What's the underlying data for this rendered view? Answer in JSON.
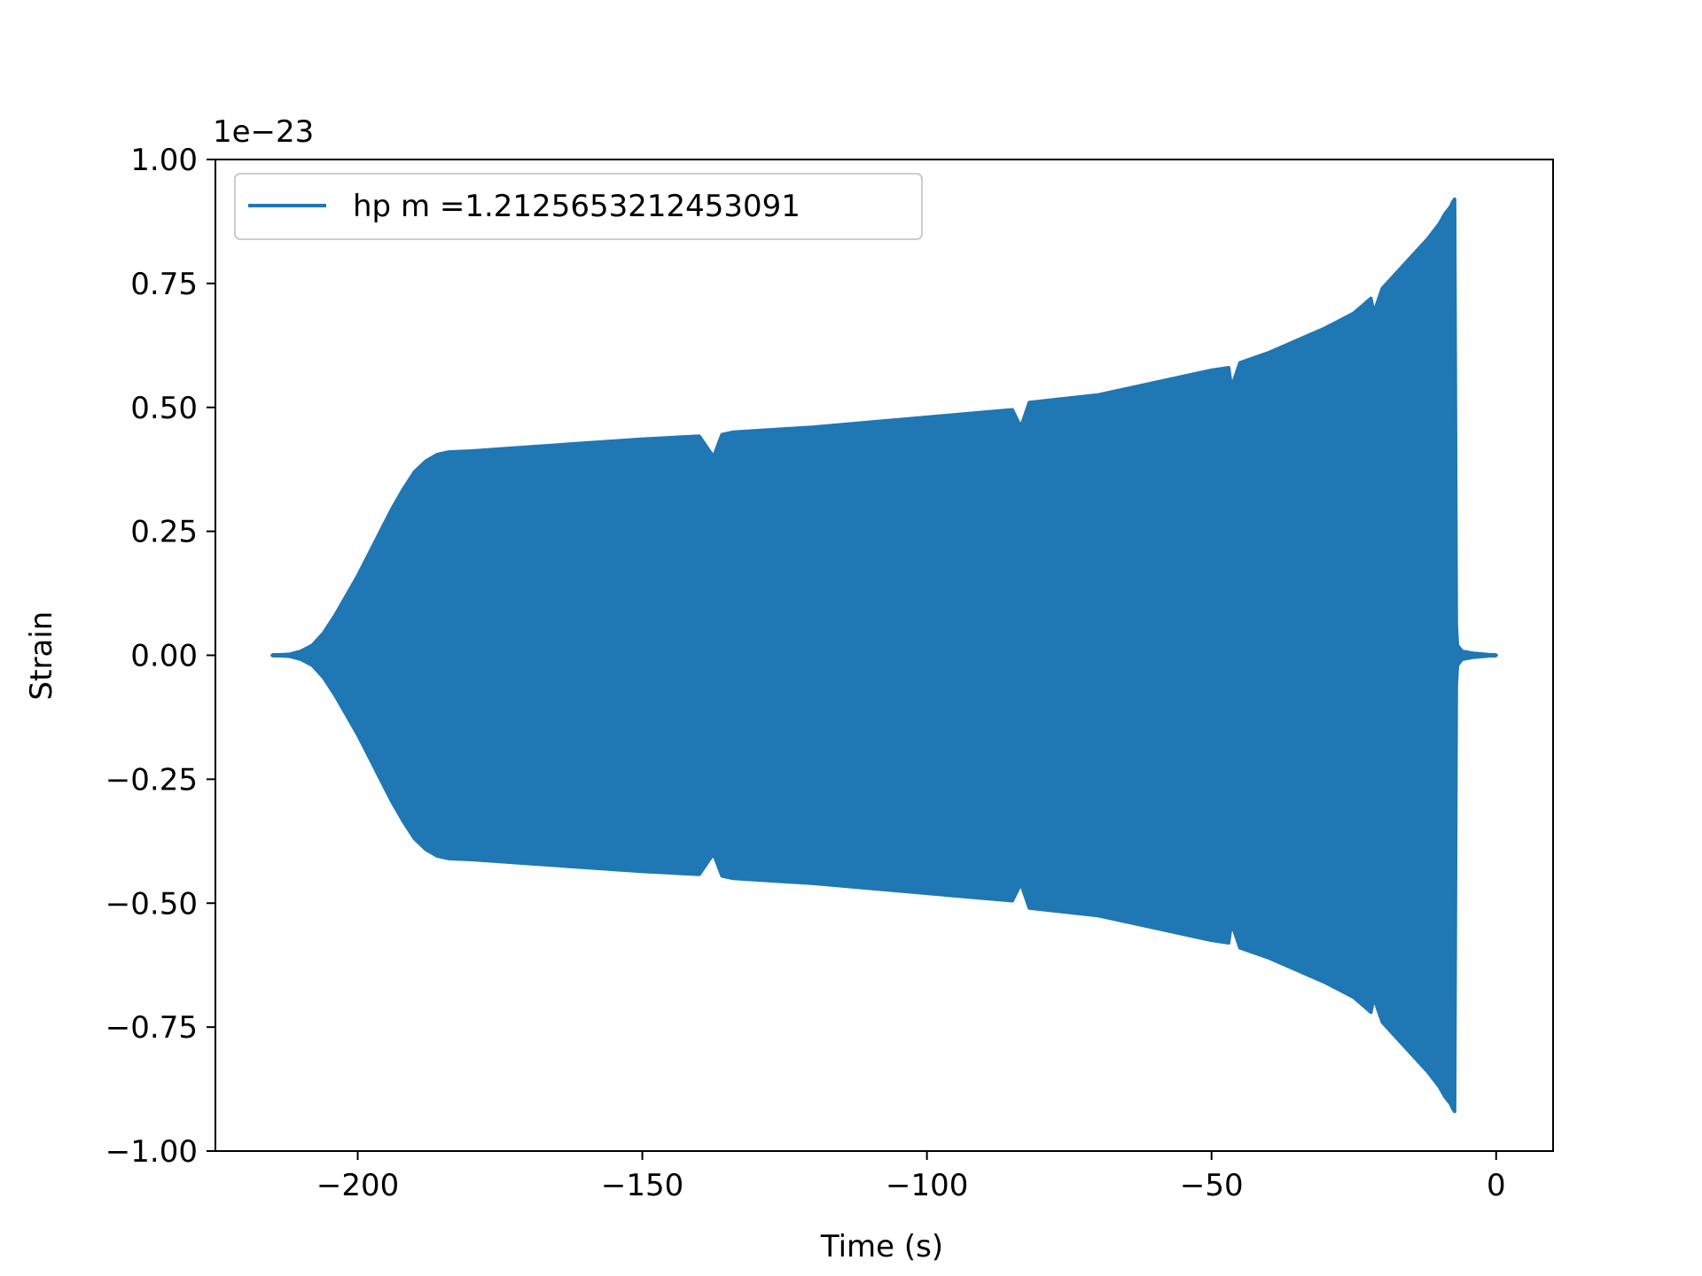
{
  "chart_data": {
    "type": "line",
    "title": "",
    "xlabel": "Time (s)",
    "ylabel": "Strain",
    "y_offset_label": "1e−23",
    "y_scale_note": "values in units of 1e-23",
    "xlim": [
      -225,
      10
    ],
    "ylim": [
      -1.0,
      1.0
    ],
    "x_ticks": [
      -200,
      -150,
      -100,
      -50,
      0
    ],
    "x_tick_labels": [
      "−200",
      "−150",
      "−100",
      "−50",
      "0"
    ],
    "y_ticks": [
      -1.0,
      -0.75,
      -0.5,
      -0.25,
      0.0,
      0.25,
      0.5,
      0.75,
      1.0
    ],
    "y_tick_labels": [
      "−1.00",
      "−0.75",
      "−0.50",
      "−0.25",
      "0.00",
      "0.25",
      "0.50",
      "0.75",
      "1.00"
    ],
    "grid": false,
    "legend_position": "upper-left",
    "series": [
      {
        "name": "hp m =1.2125653212453091",
        "color": "#1f77b4",
        "style": "dense-oscillation-envelope",
        "x": [
          -215,
          -212,
          -210,
          -208,
          -206,
          -204,
          -202,
          -200,
          -198,
          -196,
          -194,
          -192,
          -190,
          -188,
          -186,
          -184,
          -180,
          -170,
          -160,
          -150,
          -140,
          -137.5,
          -136,
          -134,
          -120,
          -110,
          -100,
          -90,
          -85,
          -83.5,
          -82,
          -70,
          -60,
          -50,
          -47,
          -46.5,
          -45,
          -40,
          -30,
          -25,
          -22,
          -21.5,
          -20,
          -16,
          -12,
          -10,
          -9,
          -8,
          -7.6,
          -7.3,
          -7,
          -6.8,
          -6,
          -4,
          -2,
          0
        ],
        "envelope": [
          0.0,
          0.002,
          0.008,
          0.02,
          0.045,
          0.08,
          0.12,
          0.16,
          0.205,
          0.25,
          0.295,
          0.335,
          0.37,
          0.392,
          0.405,
          0.41,
          0.412,
          0.42,
          0.428,
          0.436,
          0.442,
          0.4,
          0.445,
          0.45,
          0.46,
          0.47,
          0.48,
          0.49,
          0.495,
          0.46,
          0.51,
          0.525,
          0.55,
          0.575,
          0.58,
          0.54,
          0.59,
          0.61,
          0.66,
          0.69,
          0.72,
          0.69,
          0.74,
          0.79,
          0.84,
          0.87,
          0.89,
          0.905,
          0.915,
          0.92,
          0.06,
          0.02,
          0.008,
          0.004,
          0.002,
          0.0
        ]
      }
    ]
  }
}
